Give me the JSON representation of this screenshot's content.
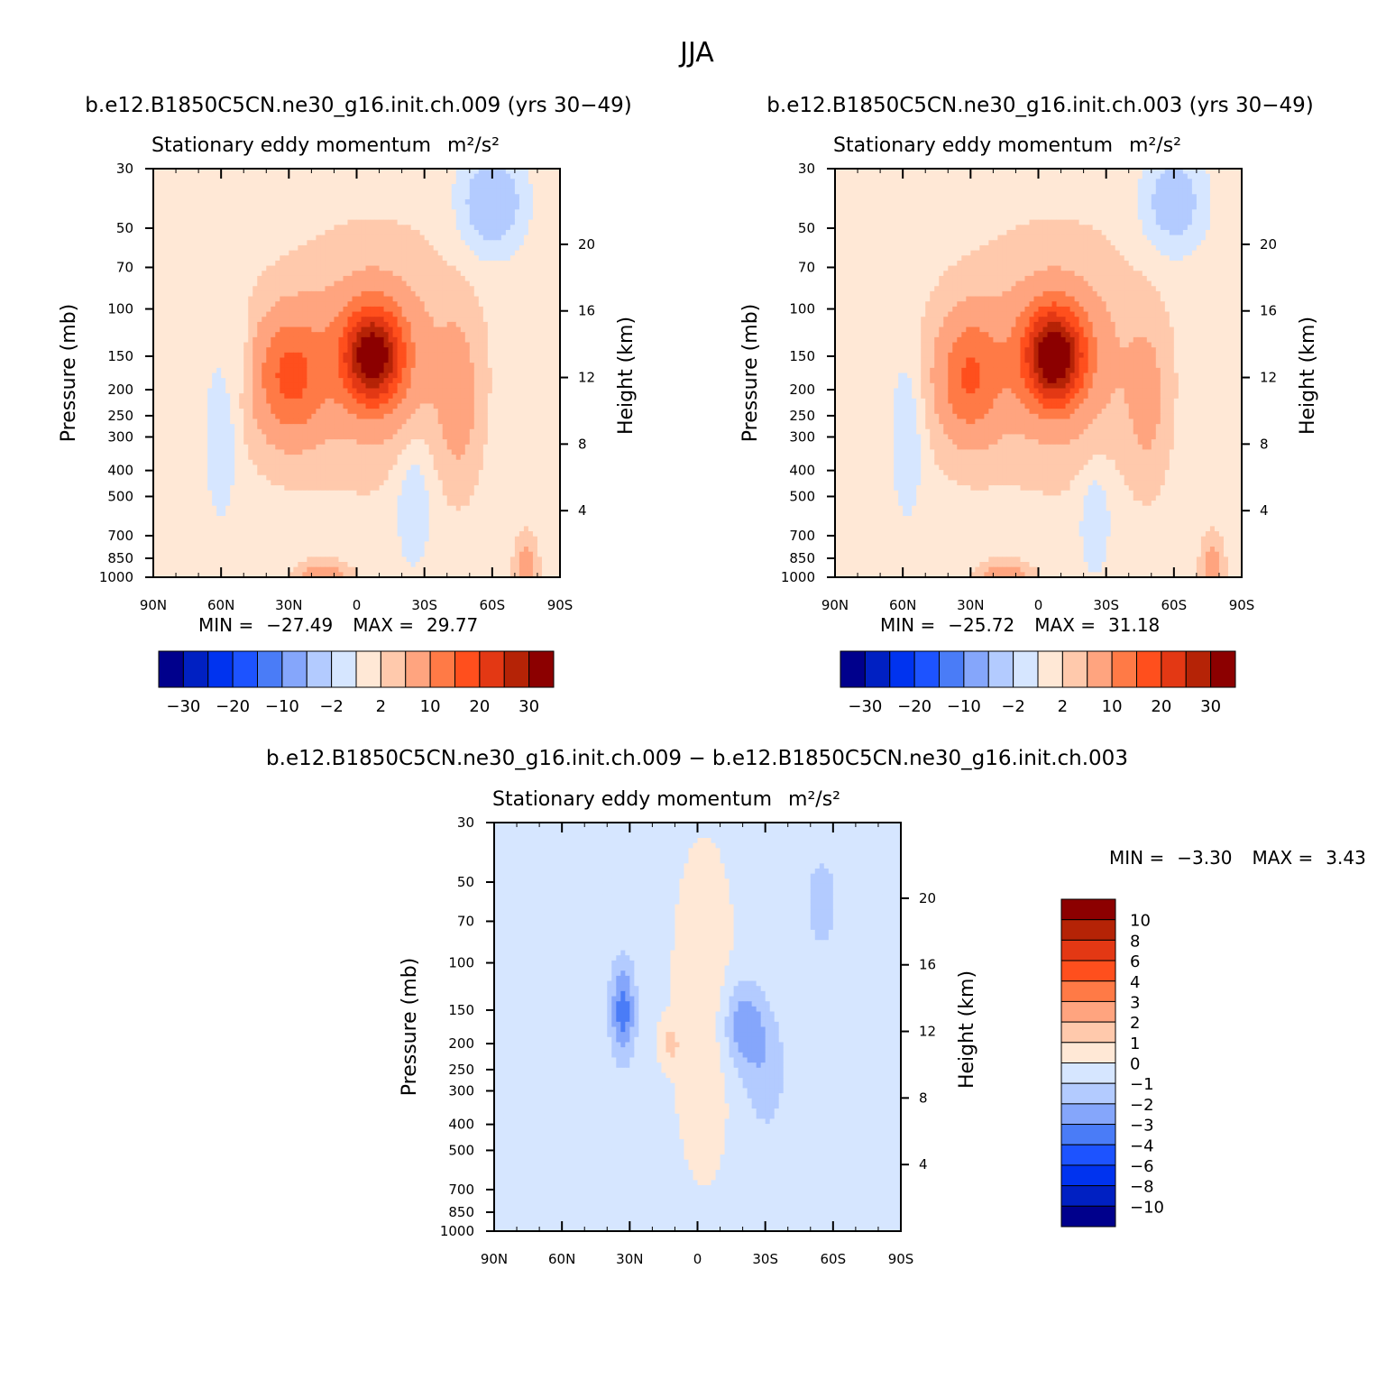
{
  "page": {
    "supertitle": "JJA",
    "diff_title": "b.e12.B1850C5CN.ne30_g16.init.ch.009  −  b.e12.B1850C5CN.ne30_g16.init.ch.003"
  },
  "colors": {
    "abs_scale": [
      "#00008c",
      "#0020c2",
      "#0033ef",
      "#1d53ff",
      "#4a7cf7",
      "#85a6fb",
      "#b3cbff",
      "#d6e6ff",
      "#ffe8d6",
      "#ffc9ac",
      "#ffa47f",
      "#ff7a46",
      "#ff4f1d",
      "#e33814",
      "#b52306",
      "#8c0000"
    ],
    "diff_scale": [
      "#00008c",
      "#0020c2",
      "#0033ef",
      "#1d53ff",
      "#4a7cf7",
      "#85a6fb",
      "#b3cbff",
      "#d6e6ff",
      "#ffe8d6",
      "#ffc9ac",
      "#ffa47f",
      "#ff7a46",
      "#ff4f1d",
      "#e33814",
      "#b52306",
      "#8c0000"
    ]
  },
  "chart_data": [
    {
      "type": "heatmap",
      "case": "b.e12.B1850C5CN.ne30_g16.init.ch.009  (yrs 30−49)",
      "title": "Stationary eddy momentum",
      "units": "m²/s²",
      "ylabel": "Pressure (mb)",
      "ylabel_right": "Height (km)",
      "x_ticks": [
        "90N",
        "60N",
        "30N",
        "0",
        "30S",
        "60S",
        "90S"
      ],
      "x_lat": [
        90,
        60,
        30,
        0,
        -30,
        -60,
        -90
      ],
      "y_ticks": [
        30,
        50,
        70,
        100,
        150,
        200,
        250,
        300,
        400,
        500,
        700,
        850,
        1000
      ],
      "y_right_ticks": [
        20,
        16,
        12,
        8,
        4
      ],
      "ylim": [
        1000,
        30
      ],
      "y_scale": "log",
      "min_label": "MIN =",
      "min": "−27.49",
      "max_label": "MAX =",
      "max": "29.77",
      "colorbar_labels": [
        "−30",
        "−20",
        "−10",
        "−2",
        "2",
        "10",
        "20",
        "30"
      ],
      "features": [
        {
          "lat": 30,
          "p": 180,
          "value": 14,
          "sx": 11,
          "sy": 0.38
        },
        {
          "lat": -7,
          "p": 150,
          "value": 27,
          "sx": 9,
          "sy": 0.28
        },
        {
          "lat": -7,
          "p": 150,
          "value": 8,
          "sx": 22,
          "sy": 0.55
        },
        {
          "lat": -45,
          "p": 220,
          "value": 6,
          "sx": 6,
          "sy": 0.45
        },
        {
          "lat": 15,
          "p": 1000,
          "value": 8,
          "sx": 7,
          "sy": 0.08
        },
        {
          "lat": -75,
          "p": 900,
          "value": 7,
          "sx": 3,
          "sy": 0.15
        },
        {
          "lat": -60,
          "p": 40,
          "value": -6,
          "sx": 10,
          "sy": 0.3
        },
        {
          "lat": 60,
          "p": 300,
          "value": -3,
          "sx": 5,
          "sy": 0.5
        },
        {
          "lat": -25,
          "p": 500,
          "value": -3,
          "sx": 6,
          "sy": 0.45
        },
        {
          "lat": 50,
          "p": 150,
          "value": -2,
          "sx": 3,
          "sy": 0.3
        }
      ],
      "background": 1.2
    },
    {
      "type": "heatmap",
      "case": "b.e12.B1850C5CN.ne30_g16.init.ch.003  (yrs 30−49)",
      "title": "Stationary eddy momentum",
      "units": "m²/s²",
      "ylabel": "Pressure (mb)",
      "ylabel_right": "Height (km)",
      "x_ticks": [
        "90N",
        "60N",
        "30N",
        "0",
        "30S",
        "60S",
        "90S"
      ],
      "x_lat": [
        90,
        60,
        30,
        0,
        -30,
        -60,
        -90
      ],
      "y_ticks": [
        30,
        50,
        70,
        100,
        150,
        200,
        250,
        300,
        400,
        500,
        700,
        850,
        1000
      ],
      "y_right_ticks": [
        20,
        16,
        12,
        8,
        4
      ],
      "ylim": [
        1000,
        30
      ],
      "y_scale": "log",
      "min_label": "MIN =",
      "min": "−25.72",
      "max_label": "MAX =",
      "max": "31.18",
      "colorbar_labels": [
        "−30",
        "−20",
        "−10",
        "−2",
        "2",
        "10",
        "20",
        "30"
      ],
      "features": [
        {
          "lat": 31,
          "p": 180,
          "value": 13,
          "sx": 10,
          "sy": 0.38
        },
        {
          "lat": -7,
          "p": 150,
          "value": 29,
          "sx": 9,
          "sy": 0.28
        },
        {
          "lat": -7,
          "p": 150,
          "value": 8,
          "sx": 22,
          "sy": 0.55
        },
        {
          "lat": -48,
          "p": 220,
          "value": 5,
          "sx": 6,
          "sy": 0.45
        },
        {
          "lat": 15,
          "p": 1000,
          "value": 8,
          "sx": 7,
          "sy": 0.08
        },
        {
          "lat": -77,
          "p": 900,
          "value": 7,
          "sx": 3,
          "sy": 0.15
        },
        {
          "lat": -60,
          "p": 40,
          "value": -5,
          "sx": 10,
          "sy": 0.3
        },
        {
          "lat": 58,
          "p": 300,
          "value": -3,
          "sx": 5,
          "sy": 0.5
        },
        {
          "lat": -25,
          "p": 600,
          "value": -3,
          "sx": 5,
          "sy": 0.35
        }
      ],
      "background": 1.2
    },
    {
      "type": "heatmap",
      "title": "Stationary eddy momentum",
      "units": "m²/s²",
      "ylabel": "Pressure (mb)",
      "ylabel_right": "Height (km)",
      "x_ticks": [
        "90N",
        "60N",
        "30N",
        "0",
        "30S",
        "60S",
        "90S"
      ],
      "x_lat": [
        90,
        60,
        30,
        0,
        -30,
        -60,
        -90
      ],
      "y_ticks": [
        30,
        50,
        70,
        100,
        150,
        200,
        250,
        300,
        400,
        500,
        700,
        850,
        1000
      ],
      "y_right_ticks": [
        20,
        16,
        12,
        8,
        4
      ],
      "ylim": [
        1000,
        30
      ],
      "y_scale": "log",
      "min_label": "MIN =",
      "min": "−3.30",
      "max_label": "MAX =",
      "max": "3.43",
      "colorbar_labels": [
        "10",
        "8",
        "6",
        "4",
        "3",
        "2",
        "1",
        "0",
        "−1",
        "−2",
        "−3",
        "−4",
        "−6",
        "−8",
        "−10"
      ],
      "features": [
        {
          "lat": 33,
          "p": 150,
          "value": -3.3,
          "sx": 4,
          "sy": 0.3
        },
        {
          "lat": -20,
          "p": 170,
          "value": -2.5,
          "sx": 6,
          "sy": 0.25
        },
        {
          "lat": -30,
          "p": 250,
          "value": -1.5,
          "sx": 7,
          "sy": 0.4
        },
        {
          "lat": 12,
          "p": 200,
          "value": 1.5,
          "sx": 3,
          "sy": 0.12
        },
        {
          "lat": -55,
          "p": 60,
          "value": -1.5,
          "sx": 5,
          "sy": 0.3
        },
        {
          "lat": -3,
          "p": 150,
          "value": 0.8,
          "sx": 9,
          "sy": 0.9
        }
      ],
      "background": -0.2
    }
  ]
}
